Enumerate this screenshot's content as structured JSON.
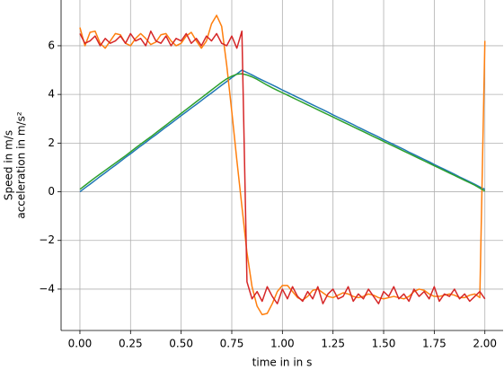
{
  "chart_data": {
    "type": "line",
    "xlabel": "time in in s",
    "ylabel": [
      "Speed in m/s",
      "acceleration in m/s²"
    ],
    "x": [
      0,
      0.025,
      0.05,
      0.075,
      0.1,
      0.125,
      0.15,
      0.175,
      0.2,
      0.225,
      0.25,
      0.275,
      0.3,
      0.325,
      0.35,
      0.375,
      0.4,
      0.425,
      0.45,
      0.475,
      0.5,
      0.525,
      0.55,
      0.575,
      0.6,
      0.625,
      0.65,
      0.675,
      0.7,
      0.725,
      0.75,
      0.775,
      0.8,
      0.825,
      0.85,
      0.875,
      0.9,
      0.925,
      0.95,
      0.975,
      1.0,
      1.025,
      1.05,
      1.075,
      1.1,
      1.125,
      1.15,
      1.175,
      1.2,
      1.225,
      1.25,
      1.275,
      1.3,
      1.325,
      1.35,
      1.375,
      1.4,
      1.425,
      1.45,
      1.475,
      1.5,
      1.525,
      1.55,
      1.575,
      1.6,
      1.625,
      1.65,
      1.675,
      1.7,
      1.725,
      1.75,
      1.775,
      1.8,
      1.825,
      1.85,
      1.875,
      1.9,
      1.925,
      1.95,
      1.975,
      2.0
    ],
    "series": [
      {
        "color": "#1f77b4",
        "values": [
          0,
          0.16,
          0.31,
          0.47,
          0.63,
          0.78,
          0.94,
          1.09,
          1.25,
          1.41,
          1.56,
          1.72,
          1.88,
          2.03,
          2.19,
          2.34,
          2.5,
          2.66,
          2.81,
          2.97,
          3.13,
          3.28,
          3.44,
          3.59,
          3.75,
          3.91,
          4.06,
          4.22,
          4.38,
          4.53,
          4.69,
          4.84,
          5,
          4.9,
          4.8,
          4.69,
          4.59,
          4.49,
          4.39,
          4.29,
          4.18,
          4.08,
          3.98,
          3.88,
          3.78,
          3.67,
          3.57,
          3.47,
          3.37,
          3.27,
          3.16,
          3.06,
          2.96,
          2.86,
          2.76,
          2.65,
          2.55,
          2.45,
          2.35,
          2.25,
          2.14,
          2.04,
          1.94,
          1.84,
          1.74,
          1.63,
          1.53,
          1.43,
          1.33,
          1.23,
          1.12,
          1.02,
          0.92,
          0.82,
          0.72,
          0.61,
          0.51,
          0.41,
          0.31,
          0.2,
          0.1
        ]
      },
      {
        "color": "#ff7f0e",
        "values": [
          6.75,
          6.0,
          6.55,
          6.6,
          6.1,
          5.9,
          6.2,
          6.5,
          6.45,
          6.1,
          6.0,
          6.3,
          6.5,
          6.3,
          6.05,
          6.15,
          6.45,
          6.5,
          6.2,
          6.0,
          6.1,
          6.4,
          6.55,
          6.2,
          5.9,
          6.2,
          6.9,
          7.25,
          6.8,
          5.2,
          3.3,
          1.3,
          -0.6,
          -2.5,
          -3.9,
          -4.7,
          -5.05,
          -5.0,
          -4.6,
          -4.1,
          -3.85,
          -3.85,
          -4.1,
          -4.35,
          -4.45,
          -4.3,
          -4.05,
          -4.0,
          -4.15,
          -4.3,
          -4.35,
          -4.25,
          -4.15,
          -4.2,
          -4.3,
          -4.35,
          -4.3,
          -4.2,
          -4.25,
          -4.35,
          -4.4,
          -4.35,
          -4.3,
          -4.35,
          -4.4,
          -4.3,
          -4.1,
          -4.0,
          -4.05,
          -4.2,
          -4.3,
          -4.3,
          -4.25,
          -4.2,
          -4.25,
          -4.35,
          -4.35,
          -4.25,
          -4.2,
          -4.35,
          6.2
        ]
      },
      {
        "color": "#2ca02c",
        "values": [
          0.1,
          0.26,
          0.42,
          0.58,
          0.73,
          0.88,
          1.03,
          1.18,
          1.33,
          1.48,
          1.64,
          1.8,
          1.96,
          2.11,
          2.26,
          2.42,
          2.58,
          2.74,
          2.9,
          3.06,
          3.22,
          3.38,
          3.54,
          3.7,
          3.86,
          4.02,
          4.18,
          4.34,
          4.5,
          4.64,
          4.75,
          4.83,
          4.85,
          4.8,
          4.72,
          4.62,
          4.5,
          4.38,
          4.27,
          4.17,
          4.07,
          3.97,
          3.87,
          3.77,
          3.67,
          3.57,
          3.47,
          3.37,
          3.27,
          3.17,
          3.07,
          2.97,
          2.87,
          2.77,
          2.67,
          2.57,
          2.47,
          2.37,
          2.27,
          2.17,
          2.07,
          1.97,
          1.87,
          1.77,
          1.67,
          1.57,
          1.47,
          1.37,
          1.27,
          1.17,
          1.07,
          0.97,
          0.87,
          0.77,
          0.67,
          0.57,
          0.47,
          0.37,
          0.27,
          0.15,
          0.03
        ]
      },
      {
        "color": "#d62728",
        "values": [
          6.5,
          6.1,
          6.2,
          6.4,
          6.0,
          6.3,
          6.1,
          6.2,
          6.4,
          6.1,
          6.5,
          6.2,
          6.3,
          6.0,
          6.6,
          6.2,
          6.1,
          6.4,
          6.0,
          6.3,
          6.2,
          6.5,
          6.1,
          6.3,
          6.0,
          6.4,
          6.2,
          6.5,
          6.1,
          6.0,
          6.4,
          5.9,
          6.6,
          -3.7,
          -4.4,
          -4.1,
          -4.5,
          -3.9,
          -4.3,
          -4.6,
          -4.0,
          -4.4,
          -3.9,
          -4.3,
          -4.5,
          -4.1,
          -4.4,
          -3.9,
          -4.6,
          -4.2,
          -4.0,
          -4.4,
          -4.3,
          -3.9,
          -4.5,
          -4.2,
          -4.4,
          -4.0,
          -4.3,
          -4.6,
          -4.1,
          -4.3,
          -3.9,
          -4.4,
          -4.2,
          -4.5,
          -4.0,
          -4.3,
          -4.1,
          -4.4,
          -3.9,
          -4.5,
          -4.2,
          -4.3,
          -4.0,
          -4.4,
          -4.2,
          -4.5,
          -4.3,
          -4.1,
          -4.4
        ]
      }
    ],
    "xlim": [
      -0.093,
      2.09
    ],
    "ylim": [
      -5.7,
      7.88
    ],
    "xticks": [
      {
        "value": 0,
        "label": "0.00"
      },
      0.25,
      {
        "value": 0.5,
        "label": "0.50"
      },
      0.75,
      {
        "value": 1,
        "label": "1.00"
      },
      1.25,
      {
        "value": 1.5,
        "label": "1.50"
      },
      1.75,
      {
        "value": 2,
        "label": "2.00"
      }
    ],
    "yticks": [
      {
        "value": -4,
        "label": "−4"
      },
      {
        "value": -2,
        "label": "−2"
      },
      0,
      2,
      4,
      6
    ],
    "grid": true
  }
}
